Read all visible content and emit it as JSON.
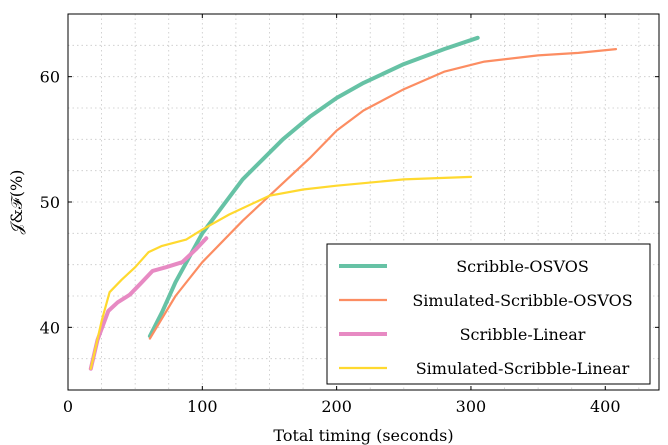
{
  "chart_data": {
    "type": "line",
    "title": "",
    "xlabel": "Total timing (seconds)",
    "ylabel": "𝒥&ℱ(%)",
    "xlim": [
      0,
      440
    ],
    "ylim": [
      35,
      65
    ],
    "xticks": [
      0,
      100,
      200,
      300,
      400
    ],
    "yticks": [
      40,
      50,
      60
    ],
    "grid": true,
    "legend_position": "bottom-right",
    "series": [
      {
        "name": "Scribble-OSVOS",
        "color": "#66c2a5",
        "width": "thick",
        "points": [
          [
            61,
            39.3
          ],
          [
            70,
            41.2
          ],
          [
            80,
            43.6
          ],
          [
            100,
            47.5
          ],
          [
            130,
            51.8
          ],
          [
            160,
            55.0
          ],
          [
            180,
            56.8
          ],
          [
            200,
            58.3
          ],
          [
            220,
            59.5
          ],
          [
            250,
            61.0
          ],
          [
            280,
            62.2
          ],
          [
            305,
            63.1
          ]
        ]
      },
      {
        "name": "Simulated-Scribble-OSVOS",
        "color": "#fc8d62",
        "width": "thin",
        "points": [
          [
            61,
            39.1
          ],
          [
            80,
            42.5
          ],
          [
            100,
            45.2
          ],
          [
            130,
            48.5
          ],
          [
            160,
            51.5
          ],
          [
            180,
            53.5
          ],
          [
            200,
            55.7
          ],
          [
            220,
            57.3
          ],
          [
            250,
            59.0
          ],
          [
            280,
            60.4
          ],
          [
            310,
            61.2
          ],
          [
            350,
            61.7
          ],
          [
            380,
            61.9
          ],
          [
            408,
            62.2
          ]
        ]
      },
      {
        "name": "Scribble-Linear",
        "color": "#e78ac3",
        "width": "thick",
        "points": [
          [
            17,
            36.7
          ],
          [
            22,
            39.0
          ],
          [
            30,
            41.3
          ],
          [
            37,
            42.0
          ],
          [
            46,
            42.6
          ],
          [
            55,
            43.6
          ],
          [
            63,
            44.5
          ],
          [
            73,
            44.8
          ],
          [
            85,
            45.2
          ],
          [
            95,
            46.2
          ],
          [
            103,
            47.1
          ]
        ]
      },
      {
        "name": "Simulated-Scribble-Linear",
        "color": "#ffd92f",
        "width": "thin",
        "points": [
          [
            17,
            36.7
          ],
          [
            25,
            40.5
          ],
          [
            31,
            42.8
          ],
          [
            40,
            43.8
          ],
          [
            50,
            44.8
          ],
          [
            60,
            46.0
          ],
          [
            70,
            46.5
          ],
          [
            88,
            47.0
          ],
          [
            100,
            47.8
          ],
          [
            120,
            49.0
          ],
          [
            150,
            50.5
          ],
          [
            175,
            51.0
          ],
          [
            200,
            51.3
          ],
          [
            250,
            51.8
          ],
          [
            300,
            52.0
          ]
        ]
      }
    ]
  }
}
